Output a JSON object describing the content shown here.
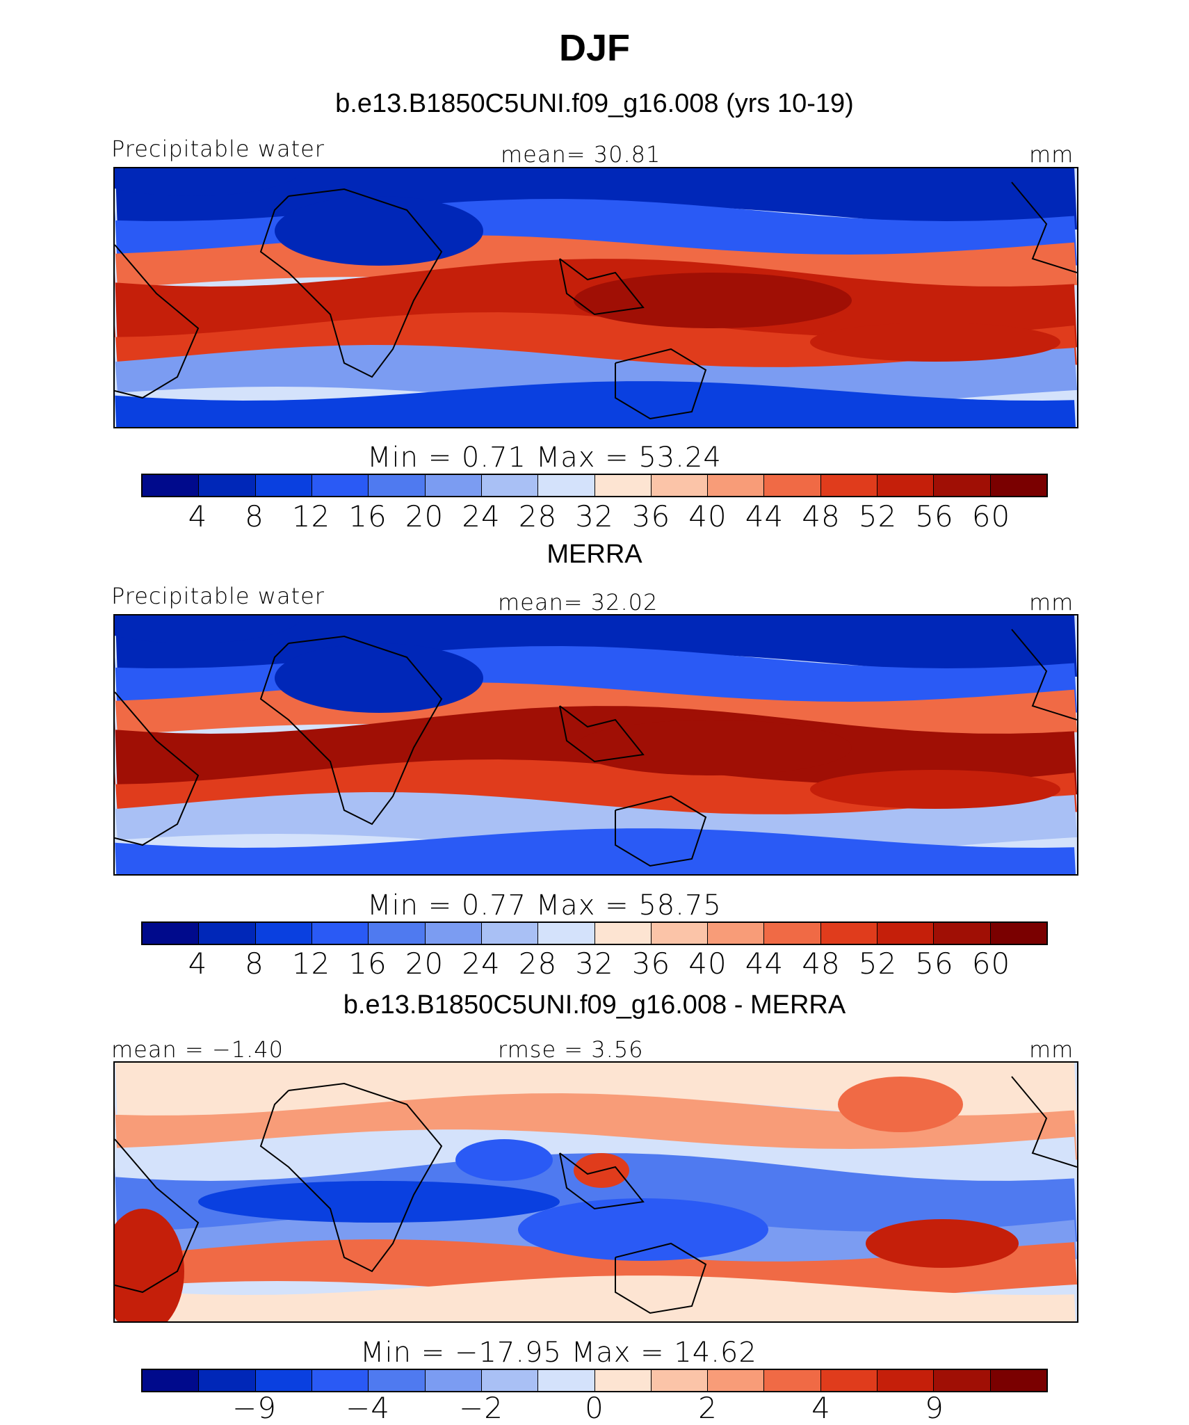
{
  "page": {
    "title": "DJF"
  },
  "colors": {
    "fill_palette": [
      "#000a8c",
      "#0027b8",
      "#0a40e0",
      "#2a5af5",
      "#4f7af0",
      "#7b9cf2",
      "#a9c0f5",
      "#d4e2fb",
      "#fde4d2",
      "#fbc4a8",
      "#f89c78",
      "#f06a45",
      "#e03c1c",
      "#c51f0a",
      "#a00f05",
      "#7a0000"
    ]
  },
  "panels": [
    {
      "subtitle": "b.e13.B1850C5UNI.f09_g16.008 (yrs 10-19)",
      "left_label": "Precipitable water",
      "center_label": "mean=   30.81",
      "right_label": "mm",
      "minmax": "Min  =     0.71  Max  =    53.24",
      "colorbar_ticks": [
        "4",
        "8",
        "12",
        "16",
        "20",
        "24",
        "28",
        "32",
        "36",
        "40",
        "44",
        "48",
        "52",
        "56",
        "60"
      ],
      "bands": {
        "top": 1,
        "mid_n": 11,
        "mid_s": 12,
        "south": 2,
        "tropic": 13
      }
    },
    {
      "subtitle": "MERRA",
      "left_label": "Precipitable water",
      "center_label": "mean=   32.02",
      "right_label": "mm",
      "minmax": "Min  =     0.77  Max  =    58.75",
      "colorbar_ticks": [
        "4",
        "8",
        "12",
        "16",
        "20",
        "24",
        "28",
        "32",
        "36",
        "40",
        "44",
        "48",
        "52",
        "56",
        "60"
      ],
      "bands": {
        "top": 1,
        "mid_n": 11,
        "mid_s": 12,
        "south": 3,
        "tropic": 14
      }
    },
    {
      "subtitle": "b.e13.B1850C5UNI.f09_g16.008 - MERRA",
      "left_label": "mean  =   −1.40",
      "center_label": "rmse  =    3.56",
      "right_label": "mm",
      "minmax": "Min  = −17.95  Max  =    14.62",
      "colorbar_ticks": [
        "−9",
        "−4",
        "−2",
        "0",
        "2",
        "4",
        "9"
      ],
      "bands": {
        "top": 8,
        "mid_n": 7,
        "mid_s": 5,
        "south": 8,
        "tropic": 4
      }
    }
  ]
}
